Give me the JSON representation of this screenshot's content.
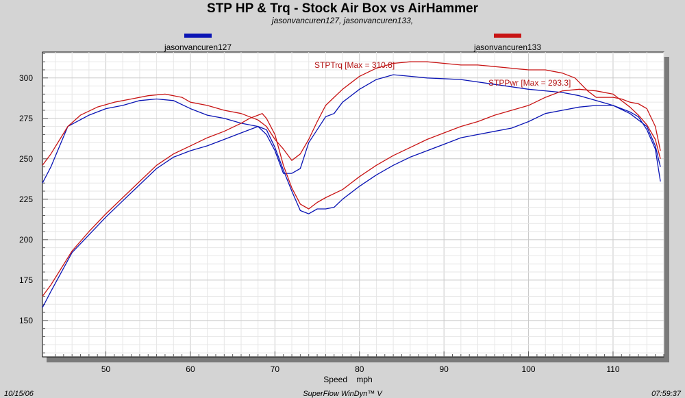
{
  "title": "STP HP & Trq - Stock Air Box vs AirHammer",
  "subtitle": "jasonvancuren127, jasonvancuren133,",
  "footer": {
    "date": "10/15/06",
    "software": "SuperFlow WinDyn™ V",
    "time": "07:59:37"
  },
  "annotations": {
    "trq_max": "STPTrq [Max = 310.8]",
    "pwr_max": "STPPwr [Max = 293.3]"
  },
  "chart_data": {
    "type": "line",
    "title": "STP HP & Trq - Stock Air Box vs AirHammer",
    "xlabel": "Speed    mph",
    "ylabel": "",
    "xlim": [
      42.5,
      116
    ],
    "ylim": [
      127.5,
      316
    ],
    "x_ticks": [
      50,
      60,
      70,
      80,
      90,
      100,
      110
    ],
    "y_ticks": [
      150,
      175,
      200,
      225,
      250,
      275,
      300
    ],
    "grid": true,
    "legend_position": "top",
    "legend": [
      {
        "name": "jasonvancuren127",
        "color": "#0a14b4"
      },
      {
        "name": "jasonvancuren133",
        "color": "#c81414"
      }
    ],
    "series": [
      {
        "name": "jasonvancuren127",
        "measure": "STPTrq",
        "color": "#0a14b4",
        "points": [
          [
            42.5,
            235
          ],
          [
            43.5,
            245
          ],
          [
            45.5,
            270
          ],
          [
            48,
            277
          ],
          [
            50,
            281
          ],
          [
            52,
            283
          ],
          [
            54,
            286
          ],
          [
            56,
            287
          ],
          [
            58,
            286
          ],
          [
            60,
            281
          ],
          [
            62,
            277
          ],
          [
            64,
            275
          ],
          [
            66,
            272
          ],
          [
            68,
            270
          ],
          [
            69,
            265
          ],
          [
            70,
            255
          ],
          [
            71,
            241
          ],
          [
            72,
            241
          ],
          [
            73,
            244
          ],
          [
            74,
            260
          ],
          [
            75,
            268
          ],
          [
            76,
            276
          ],
          [
            77,
            278
          ],
          [
            78,
            285
          ],
          [
            80,
            293
          ],
          [
            82,
            299
          ],
          [
            84,
            302
          ],
          [
            86,
            301
          ],
          [
            88,
            300
          ],
          [
            92,
            299
          ],
          [
            96,
            296
          ],
          [
            100,
            293
          ],
          [
            104,
            291
          ],
          [
            106,
            289
          ],
          [
            108,
            286
          ],
          [
            110,
            283
          ],
          [
            112,
            278
          ],
          [
            114,
            270
          ],
          [
            115,
            258
          ],
          [
            115.6,
            245
          ]
        ]
      },
      {
        "name": "jasonvancuren127",
        "measure": "STPPwr",
        "color": "#0a14b4",
        "points": [
          [
            42.5,
            158
          ],
          [
            43.5,
            168
          ],
          [
            46,
            192
          ],
          [
            48,
            203
          ],
          [
            50,
            214
          ],
          [
            52,
            224
          ],
          [
            54,
            234
          ],
          [
            56,
            244
          ],
          [
            58,
            251
          ],
          [
            60,
            255
          ],
          [
            62,
            258
          ],
          [
            64,
            262
          ],
          [
            66,
            266
          ],
          [
            68,
            270
          ],
          [
            69,
            268
          ],
          [
            70,
            257
          ],
          [
            71,
            243
          ],
          [
            72,
            230
          ],
          [
            73,
            218
          ],
          [
            74,
            216
          ],
          [
            75,
            219
          ],
          [
            76,
            219
          ],
          [
            77,
            220
          ],
          [
            78,
            225
          ],
          [
            80,
            233
          ],
          [
            82,
            240
          ],
          [
            84,
            246
          ],
          [
            86,
            251
          ],
          [
            88,
            255
          ],
          [
            90,
            259
          ],
          [
            92,
            263
          ],
          [
            94,
            265
          ],
          [
            96,
            267
          ],
          [
            98,
            269
          ],
          [
            100,
            273
          ],
          [
            102,
            278
          ],
          [
            104,
            280
          ],
          [
            106,
            282
          ],
          [
            108,
            283
          ],
          [
            110,
            283
          ],
          [
            112,
            279
          ],
          [
            113,
            276
          ],
          [
            114,
            268
          ],
          [
            115,
            256
          ],
          [
            115.6,
            236
          ]
        ]
      },
      {
        "name": "jasonvancuren133",
        "measure": "STPTrq",
        "color": "#c81414",
        "points": [
          [
            42.5,
            246
          ],
          [
            43.5,
            253
          ],
          [
            45.5,
            270
          ],
          [
            47,
            277
          ],
          [
            49,
            282
          ],
          [
            51,
            285
          ],
          [
            53,
            287
          ],
          [
            55,
            289
          ],
          [
            57,
            290
          ],
          [
            59,
            288
          ],
          [
            60,
            285
          ],
          [
            62,
            283
          ],
          [
            64,
            280
          ],
          [
            66,
            278
          ],
          [
            68,
            274
          ],
          [
            69,
            270
          ],
          [
            70,
            262
          ],
          [
            71,
            256
          ],
          [
            72,
            249
          ],
          [
            73,
            253
          ],
          [
            74,
            262
          ],
          [
            75,
            273
          ],
          [
            76,
            283
          ],
          [
            77,
            288
          ],
          [
            78,
            293
          ],
          [
            80,
            301
          ],
          [
            82,
            306
          ],
          [
            84,
            309
          ],
          [
            86,
            310
          ],
          [
            88,
            310
          ],
          [
            90,
            309
          ],
          [
            92,
            308
          ],
          [
            94,
            308
          ],
          [
            96,
            307
          ],
          [
            98,
            306
          ],
          [
            100,
            305
          ],
          [
            102,
            305
          ],
          [
            104,
            303
          ],
          [
            105.5,
            300
          ],
          [
            107,
            292
          ],
          [
            108,
            288
          ],
          [
            110,
            288
          ],
          [
            111,
            287
          ],
          [
            112,
            285
          ],
          [
            113,
            284
          ],
          [
            114,
            281
          ],
          [
            115,
            270
          ],
          [
            115.6,
            255
          ]
        ]
      },
      {
        "name": "jasonvancuren133",
        "measure": "STPPwr",
        "color": "#c81414",
        "points": [
          [
            42.5,
            165
          ],
          [
            43.5,
            172
          ],
          [
            46,
            193
          ],
          [
            48,
            205
          ],
          [
            50,
            216
          ],
          [
            52,
            226
          ],
          [
            54,
            236
          ],
          [
            56,
            246
          ],
          [
            58,
            253
          ],
          [
            60,
            258
          ],
          [
            62,
            263
          ],
          [
            64,
            267
          ],
          [
            66,
            272
          ],
          [
            67,
            275
          ],
          [
            68,
            277
          ],
          [
            68.5,
            278
          ],
          [
            69,
            275
          ],
          [
            70,
            265
          ],
          [
            71,
            246
          ],
          [
            72,
            232
          ],
          [
            73,
            222
          ],
          [
            74,
            219
          ],
          [
            75,
            223
          ],
          [
            76,
            226
          ],
          [
            78,
            231
          ],
          [
            80,
            239
          ],
          [
            82,
            246
          ],
          [
            84,
            252
          ],
          [
            86,
            257
          ],
          [
            88,
            262
          ],
          [
            90,
            266
          ],
          [
            92,
            270
          ],
          [
            94,
            273
          ],
          [
            96,
            277
          ],
          [
            98,
            280
          ],
          [
            100,
            283
          ],
          [
            102,
            288
          ],
          [
            104,
            292
          ],
          [
            106,
            293
          ],
          [
            108,
            292
          ],
          [
            110,
            290
          ],
          [
            112,
            282
          ],
          [
            113,
            277
          ],
          [
            114,
            271
          ],
          [
            115,
            262
          ],
          [
            115.6,
            250
          ]
        ]
      }
    ]
  }
}
